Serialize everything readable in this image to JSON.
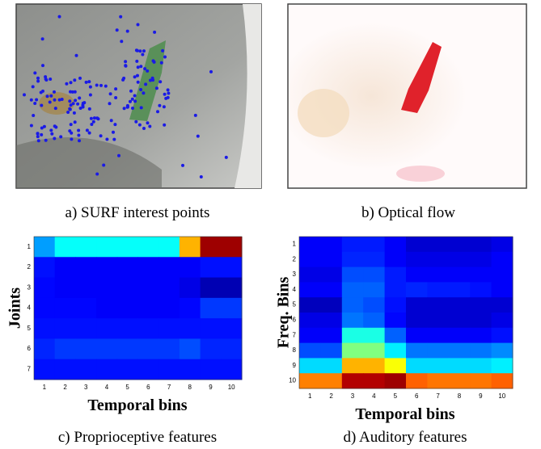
{
  "images": [
    {
      "caption": "a) SURF interest points"
    },
    {
      "caption": "b) Optical flow"
    }
  ],
  "chart_data": [
    {
      "type": "heatmap",
      "caption": "c) Proprioceptive features",
      "xlabel": "Temporal bins",
      "ylabel": "Joints",
      "categories": [
        1,
        2,
        3,
        4,
        5,
        6,
        7,
        8,
        9,
        10
      ],
      "rows": [
        1,
        2,
        3,
        4,
        5,
        6,
        7
      ],
      "values": [
        [
          0.28,
          0.38,
          0.38,
          0.38,
          0.38,
          0.38,
          0.38,
          0.7,
          0.97,
          0.97
        ],
        [
          0.14,
          0.12,
          0.12,
          0.12,
          0.12,
          0.12,
          0.12,
          0.12,
          0.14,
          0.14
        ],
        [
          0.13,
          0.12,
          0.12,
          0.12,
          0.12,
          0.12,
          0.12,
          0.1,
          0.05,
          0.05
        ],
        [
          0.13,
          0.13,
          0.13,
          0.12,
          0.12,
          0.12,
          0.12,
          0.13,
          0.18,
          0.18
        ],
        [
          0.14,
          0.14,
          0.14,
          0.14,
          0.14,
          0.14,
          0.14,
          0.14,
          0.14,
          0.14
        ],
        [
          0.16,
          0.18,
          0.18,
          0.18,
          0.18,
          0.18,
          0.18,
          0.2,
          0.16,
          0.16
        ],
        [
          0.14,
          0.14,
          0.14,
          0.14,
          0.14,
          0.14,
          0.14,
          0.14,
          0.14,
          0.14
        ]
      ]
    },
    {
      "type": "heatmap",
      "caption": "d) Auditory features",
      "xlabel": "Temporal bins",
      "ylabel": "Freq. Bins",
      "categories": [
        1,
        2,
        3,
        4,
        5,
        6,
        7,
        8,
        9,
        10
      ],
      "rows": [
        1,
        2,
        3,
        4,
        5,
        6,
        7,
        8,
        9,
        10
      ],
      "values": [
        [
          0.12,
          0.12,
          0.15,
          0.15,
          0.12,
          0.08,
          0.08,
          0.08,
          0.08,
          0.1
        ],
        [
          0.12,
          0.12,
          0.16,
          0.16,
          0.12,
          0.1,
          0.1,
          0.1,
          0.1,
          0.12
        ],
        [
          0.1,
          0.1,
          0.2,
          0.2,
          0.15,
          0.12,
          0.12,
          0.12,
          0.12,
          0.12
        ],
        [
          0.12,
          0.12,
          0.22,
          0.22,
          0.15,
          0.16,
          0.15,
          0.15,
          0.14,
          0.12
        ],
        [
          0.06,
          0.06,
          0.22,
          0.2,
          0.14,
          0.08,
          0.08,
          0.08,
          0.08,
          0.08
        ],
        [
          0.1,
          0.1,
          0.24,
          0.22,
          0.13,
          0.08,
          0.08,
          0.08,
          0.08,
          0.1
        ],
        [
          0.12,
          0.12,
          0.4,
          0.4,
          0.22,
          0.12,
          0.12,
          0.12,
          0.12,
          0.14
        ],
        [
          0.2,
          0.2,
          0.5,
          0.5,
          0.36,
          0.24,
          0.24,
          0.24,
          0.24,
          0.26
        ],
        [
          0.34,
          0.34,
          0.7,
          0.7,
          0.62,
          0.34,
          0.34,
          0.34,
          0.34,
          0.36
        ],
        [
          0.75,
          0.75,
          0.95,
          0.95,
          0.97,
          0.78,
          0.76,
          0.76,
          0.76,
          0.78
        ]
      ]
    }
  ]
}
